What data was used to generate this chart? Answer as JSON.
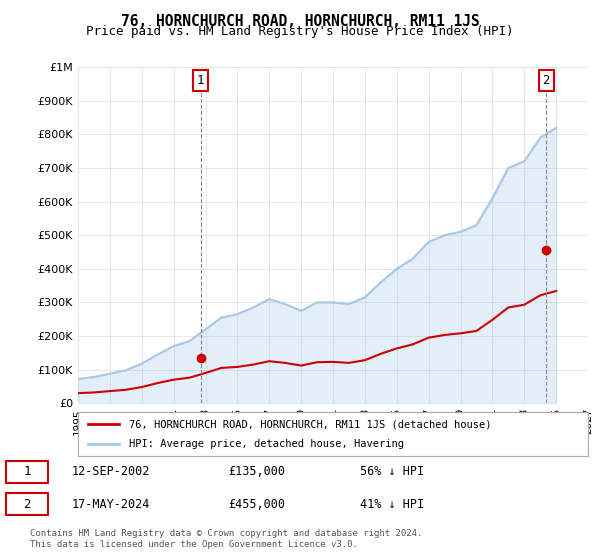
{
  "title": "76, HORNCHURCH ROAD, HORNCHURCH, RM11 1JS",
  "subtitle": "Price paid vs. HM Land Registry's House Price Index (HPI)",
  "hpi_label": "HPI: Average price, detached house, Havering",
  "property_label": "76, HORNCHURCH ROAD, HORNCHURCH, RM11 1JS (detached house)",
  "sale1_date": "12-SEP-2002",
  "sale1_price": 135000,
  "sale1_note": "56% ↓ HPI",
  "sale2_date": "17-MAY-2024",
  "sale2_price": 455000,
  "sale2_note": "41% ↓ HPI",
  "footer": "Contains HM Land Registry data © Crown copyright and database right 2024.\nThis data is licensed under the Open Government Licence v3.0.",
  "ylim": [
    0,
    1000000
  ],
  "hpi_color": "#a8c8e8",
  "property_color": "#cc0000",
  "sale1_marker_x": 2002.7,
  "sale2_marker_x": 2024.38,
  "hpi_data": {
    "years": [
      1995,
      1996,
      1997,
      1998,
      1999,
      2000,
      2001,
      2002,
      2003,
      2004,
      2005,
      2006,
      2007,
      2008,
      2009,
      2010,
      2011,
      2012,
      2013,
      2014,
      2015,
      2016,
      2017,
      2018,
      2019,
      2020,
      2021,
      2022,
      2023,
      2024,
      2025
    ],
    "values": [
      72000,
      78000,
      88000,
      98000,
      118000,
      145000,
      170000,
      185000,
      220000,
      255000,
      265000,
      285000,
      310000,
      295000,
      275000,
      300000,
      300000,
      295000,
      315000,
      360000,
      400000,
      430000,
      480000,
      500000,
      510000,
      530000,
      610000,
      700000,
      720000,
      790000,
      820000
    ]
  },
  "property_data": {
    "years": [
      1995,
      1996,
      1997,
      1998,
      1999,
      2000,
      2001,
      2002,
      2003,
      2004,
      2005,
      2006,
      2007,
      2008,
      2009,
      2010,
      2011,
      2012,
      2013,
      2014,
      2015,
      2016,
      2017,
      2018,
      2019,
      2020,
      2021,
      2022,
      2023,
      2024,
      2025
    ],
    "values": [
      30000,
      32000,
      36000,
      40000,
      48000,
      60000,
      70000,
      76000,
      90000,
      105000,
      108000,
      115000,
      125000,
      120000,
      112000,
      122000,
      123000,
      120000,
      128000,
      147000,
      163000,
      175000,
      195000,
      203000,
      208000,
      215000,
      248000,
      285000,
      293000,
      321000,
      334000
    ]
  },
  "background_color": "#ffffff",
  "grid_color": "#dddddd",
  "vline1_x": 2002.7,
  "vline2_x": 2024.38,
  "xmin": 1995,
  "xmax": 2027
}
